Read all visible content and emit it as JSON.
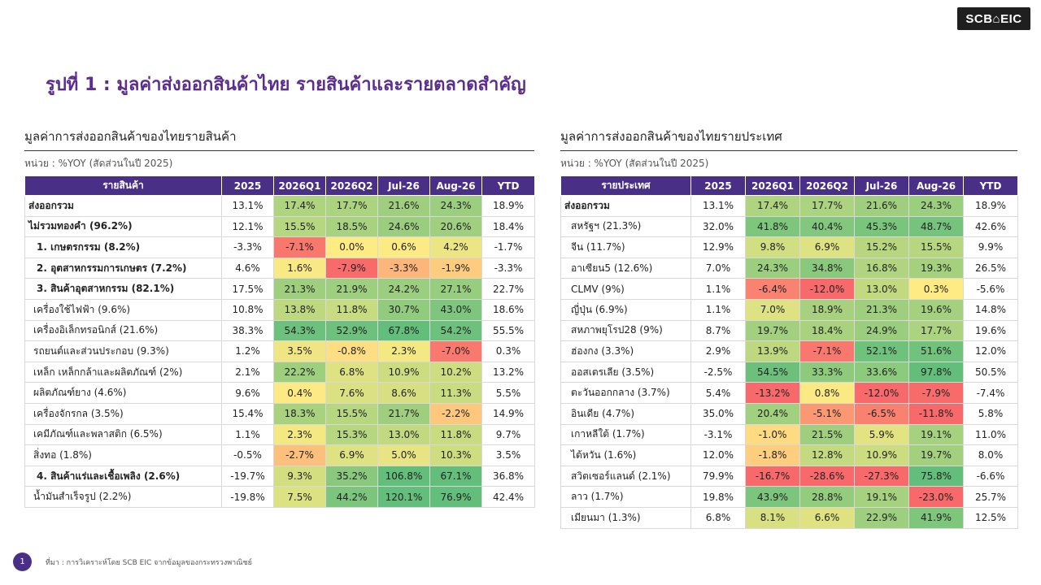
{
  "logo": "SCB⌂EIC",
  "title": "รูปที่ 1 : มูลค่าส่งออกสินค้าไทย รายสินค้าและรายตลาดสำคัญ",
  "left": {
    "title": "มูลค่าการส่งออกสินค้าของไทยรายสินค้า",
    "unit": "หน่วย : %YOY (สัดส่วนในปี 2025)",
    "headers": [
      "รายสินค้า",
      "2025",
      "2026Q1",
      "2026Q2",
      "Jul-26",
      "Aug-26",
      "YTD"
    ],
    "rows": [
      {
        "label": "ส่งออกรวม",
        "level": 0,
        "bold": true,
        "values": [
          "13.1%",
          "17.4%",
          "17.7%",
          "21.6%",
          "24.3%",
          "18.9%"
        ]
      },
      {
        "label": "ไม่รวมทองคำ (96.2%)",
        "level": 0,
        "bold": true,
        "values": [
          "12.1%",
          "15.5%",
          "18.5%",
          "24.6%",
          "20.6%",
          "18.4%"
        ]
      },
      {
        "label": "1. เกษตรกรรม (8.2%)",
        "level": 1,
        "bold": true,
        "values": [
          "-3.3%",
          "-7.1%",
          "0.0%",
          "0.6%",
          "4.2%",
          "-1.7%"
        ]
      },
      {
        "label": "2. อุตสาหกรรมการเกษตร (7.2%)",
        "level": 1,
        "bold": true,
        "values": [
          "4.6%",
          "1.6%",
          "-7.9%",
          "-3.3%",
          "-1.9%",
          "-3.3%"
        ]
      },
      {
        "label": "3. สินค้าอุตสาหกรรม (82.1%)",
        "level": 1,
        "bold": true,
        "values": [
          "17.5%",
          "21.3%",
          "21.9%",
          "24.2%",
          "27.1%",
          "22.7%"
        ]
      },
      {
        "label": "เครื่องใช้ไฟฟ้า (9.6%)",
        "level": 2,
        "bold": false,
        "values": [
          "10.8%",
          "13.8%",
          "11.8%",
          "30.7%",
          "43.0%",
          "18.6%"
        ]
      },
      {
        "label": "เครื่องอิเล็กทรอนิกส์ (21.6%)",
        "level": 2,
        "bold": false,
        "values": [
          "38.3%",
          "54.3%",
          "52.9%",
          "67.8%",
          "54.2%",
          "55.5%"
        ]
      },
      {
        "label": "รถยนต์และส่วนประกอบ (9.3%)",
        "level": 2,
        "bold": false,
        "values": [
          "1.2%",
          "3.5%",
          "-0.8%",
          "2.3%",
          "-7.0%",
          "0.3%"
        ]
      },
      {
        "label": "เหล็ก เหล็กกล้าและผลิตภัณฑ์ (2%)",
        "level": 2,
        "bold": false,
        "values": [
          "2.1%",
          "22.2%",
          "6.8%",
          "10.9%",
          "10.2%",
          "13.2%"
        ]
      },
      {
        "label": "ผลิตภัณฑ์ยาง (4.6%)",
        "level": 2,
        "bold": false,
        "values": [
          "9.6%",
          "0.4%",
          "7.6%",
          "8.6%",
          "11.3%",
          "5.5%"
        ]
      },
      {
        "label": "เครื่องจักรกล (3.5%)",
        "level": 2,
        "bold": false,
        "values": [
          "15.4%",
          "18.3%",
          "15.5%",
          "21.7%",
          "-2.2%",
          "14.9%"
        ]
      },
      {
        "label": "เคมีภัณฑ์และพลาสติก (6.5%)",
        "level": 2,
        "bold": false,
        "values": [
          "1.1%",
          "2.3%",
          "15.3%",
          "13.0%",
          "11.8%",
          "9.7%"
        ]
      },
      {
        "label": "สิ่งทอ (1.8%)",
        "level": 2,
        "bold": false,
        "values": [
          "-0.5%",
          "-2.7%",
          "6.9%",
          "5.0%",
          "10.3%",
          "3.5%"
        ]
      },
      {
        "label": "4. สินค้าแร่และเชื้อเพลิง (2.6%)",
        "level": 1,
        "bold": true,
        "values": [
          "-19.7%",
          "9.3%",
          "35.2%",
          "106.8%",
          "67.1%",
          "36.8%"
        ]
      },
      {
        "label": "น้ำมันสำเร็จรูป (2.2%)",
        "level": 2,
        "bold": false,
        "values": [
          "-19.8%",
          "7.5%",
          "44.2%",
          "120.1%",
          "76.9%",
          "42.4%"
        ]
      }
    ]
  },
  "right": {
    "title": "มูลค่าการส่งออกสินค้าของไทยรายประเทศ",
    "unit": "หน่วย : %YOY (สัดส่วนในปี 2025)",
    "headers": [
      "รายประเทศ",
      "2025",
      "2026Q1",
      "2026Q2",
      "Jul-26",
      "Aug-26",
      "YTD"
    ],
    "rows": [
      {
        "label": "ส่งออกรวม",
        "level": 0,
        "bold": true,
        "values": [
          "13.1%",
          "17.4%",
          "17.7%",
          "21.6%",
          "24.3%",
          "18.9%"
        ]
      },
      {
        "label": "สหรัฐฯ (21.3%)",
        "level": 1,
        "bold": false,
        "values": [
          "32.0%",
          "41.8%",
          "40.4%",
          "45.3%",
          "48.7%",
          "42.6%"
        ]
      },
      {
        "label": "จีน (11.7%)",
        "level": 1,
        "bold": false,
        "values": [
          "12.9%",
          "9.8%",
          "6.9%",
          "15.2%",
          "15.5%",
          "9.9%"
        ]
      },
      {
        "label": "อาเซียน5 (12.6%)",
        "level": 1,
        "bold": false,
        "values": [
          "7.0%",
          "24.3%",
          "34.8%",
          "16.8%",
          "19.3%",
          "26.5%"
        ]
      },
      {
        "label": "CLMV (9%)",
        "level": 1,
        "bold": false,
        "values": [
          "1.1%",
          "-6.4%",
          "-12.0%",
          "13.0%",
          "0.3%",
          "-5.6%"
        ]
      },
      {
        "label": "ญี่ปุ่น (6.9%)",
        "level": 1,
        "bold": false,
        "values": [
          "1.1%",
          "7.0%",
          "18.9%",
          "21.3%",
          "19.6%",
          "14.8%"
        ]
      },
      {
        "label": "สหภาพยุโรป28 (9%)",
        "level": 1,
        "bold": false,
        "values": [
          "8.7%",
          "19.7%",
          "18.4%",
          "24.9%",
          "17.7%",
          "19.6%"
        ]
      },
      {
        "label": "ฮ่องกง (3.3%)",
        "level": 1,
        "bold": false,
        "values": [
          "2.9%",
          "13.9%",
          "-7.1%",
          "52.1%",
          "51.6%",
          "12.0%"
        ]
      },
      {
        "label": "ออสเตรเลีย (3.5%)",
        "level": 1,
        "bold": false,
        "values": [
          "-2.5%",
          "54.5%",
          "33.3%",
          "33.6%",
          "97.8%",
          "50.5%"
        ]
      },
      {
        "label": "ตะวันออกกลาง (3.7%)",
        "level": 1,
        "bold": false,
        "values": [
          "5.4%",
          "-13.2%",
          "0.8%",
          "-12.0%",
          "-7.9%",
          "-7.4%"
        ]
      },
      {
        "label": "อินเดีย (4.7%)",
        "level": 1,
        "bold": false,
        "values": [
          "35.0%",
          "20.4%",
          "-5.1%",
          "-6.5%",
          "-11.8%",
          "5.8%"
        ]
      },
      {
        "label": "เกาหลีใต้ (1.7%)",
        "level": 1,
        "bold": false,
        "values": [
          "-3.1%",
          "-1.0%",
          "21.5%",
          "5.9%",
          "19.1%",
          "11.0%"
        ]
      },
      {
        "label": "ไต้หวัน (1.6%)",
        "level": 1,
        "bold": false,
        "values": [
          "12.0%",
          "-1.8%",
          "12.8%",
          "10.9%",
          "19.7%",
          "8.0%"
        ]
      },
      {
        "label": "สวิตเซอร์แลนด์ (2.1%)",
        "level": 1,
        "bold": false,
        "values": [
          "79.9%",
          "-16.7%",
          "-28.6%",
          "-27.3%",
          "75.8%",
          "-6.6%"
        ]
      },
      {
        "label": "ลาว (1.7%)",
        "level": 1,
        "bold": false,
        "values": [
          "19.8%",
          "43.9%",
          "28.8%",
          "19.1%",
          "-23.0%",
          "25.7%"
        ]
      },
      {
        "label": "เมียนมา (1.3%)",
        "level": 1,
        "bold": false,
        "values": [
          "6.8%",
          "8.1%",
          "6.6%",
          "22.9%",
          "41.9%",
          "12.5%"
        ]
      }
    ]
  },
  "footer": {
    "page": "1",
    "source": "ที่มา : การวิเคราะห์โดย SCB EIC จากข้อมูลของกระทรวงพาณิชย์"
  }
}
